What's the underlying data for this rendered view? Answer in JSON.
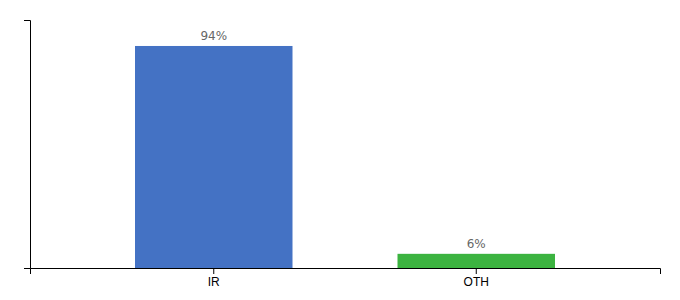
{
  "chart_data": {
    "type": "bar",
    "categories": [
      "IR",
      "OTH"
    ],
    "values": [
      94,
      6
    ],
    "value_labels": [
      "94%",
      "6%"
    ],
    "colors": [
      "#4472c4",
      "#3cb340"
    ],
    "ylim": [
      0,
      105
    ],
    "yticks": [],
    "data_labels": true,
    "tick_labels": "x",
    "grid": false
  }
}
